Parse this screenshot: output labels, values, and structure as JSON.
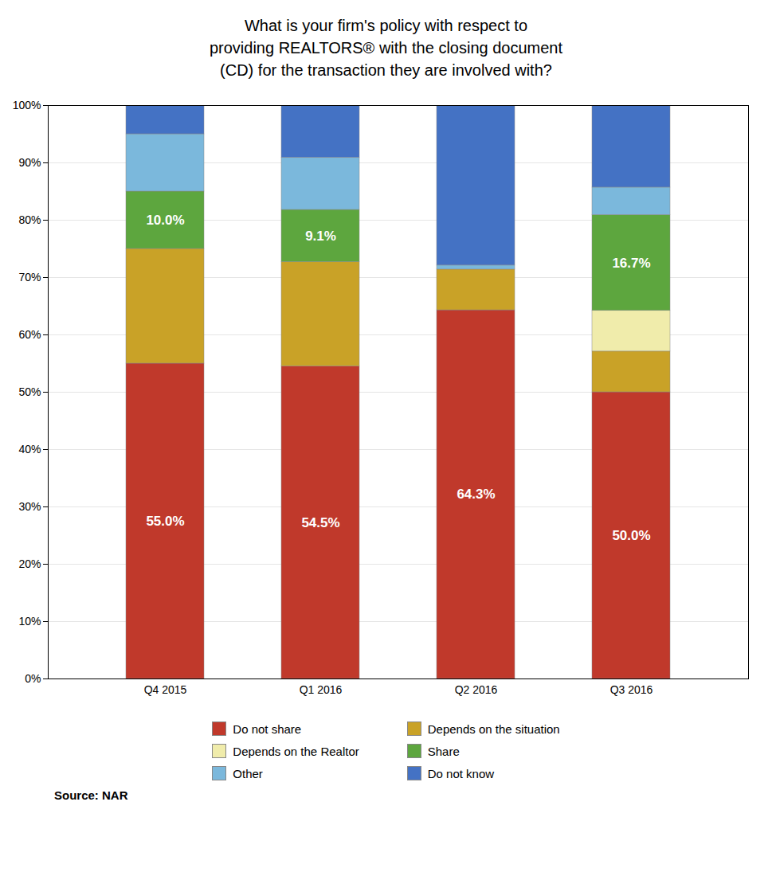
{
  "chart_data": {
    "type": "bar",
    "stacked": true,
    "title": "What is your firm's policy with respect to\nproviding REALTORS® with the closing document\n(CD) for the transaction they are involved with?",
    "categories": [
      "Q4 2015",
      "Q1 2016",
      "Q2 2016",
      "Q3 2016"
    ],
    "series": [
      {
        "name": "Do not share",
        "color": "#C0392B",
        "values": [
          55.0,
          54.5,
          64.3,
          50.0
        ],
        "data_labels": true,
        "value_labels": [
          "55.0%",
          "54.5%",
          "64.3%",
          "50.0%"
        ]
      },
      {
        "name": "Depends on the situation",
        "color": "#C9A227",
        "values": [
          20.0,
          18.2,
          7.1,
          7.1
        ]
      },
      {
        "name": "Depends on the Realtor",
        "color": "#F0ECAB",
        "values": [
          0.0,
          0.0,
          0.0,
          7.1
        ]
      },
      {
        "name": "Share",
        "color": "#5DA63E",
        "values": [
          10.0,
          9.1,
          0.0,
          16.7
        ],
        "data_labels": true,
        "value_labels": [
          "10.0%",
          "9.1%",
          null,
          "16.7%"
        ]
      },
      {
        "name": "Other",
        "color": "#7BB8DC",
        "values": [
          10.0,
          9.1,
          0.7,
          4.8
        ]
      },
      {
        "name": "Do not know",
        "color": "#4472C4",
        "values": [
          5.0,
          9.1,
          27.9,
          14.3
        ]
      }
    ],
    "ylim": [
      0,
      100
    ],
    "yticks": [
      {
        "value": 0,
        "label": "0%"
      },
      {
        "value": 10,
        "label": "10%"
      },
      {
        "value": 20,
        "label": "20%"
      },
      {
        "value": 30,
        "label": "30%"
      },
      {
        "value": 40,
        "label": "40%"
      },
      {
        "value": 50,
        "label": "50%"
      },
      {
        "value": 60,
        "label": "60%"
      },
      {
        "value": 70,
        "label": "70%"
      },
      {
        "value": 80,
        "label": "80%"
      },
      {
        "value": 90,
        "label": "90%"
      },
      {
        "value": 100,
        "label": "100%"
      }
    ],
    "grid": true,
    "legend": "bottom",
    "source": "Source: NAR"
  }
}
